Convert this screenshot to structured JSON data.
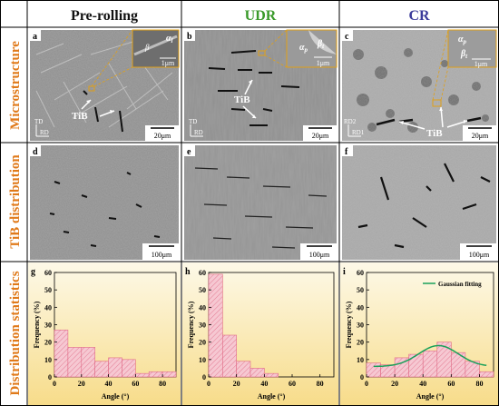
{
  "columns": [
    {
      "label": "Pre-rolling",
      "color": "#111111"
    },
    {
      "label": "UDR",
      "color": "#3a9a2a"
    },
    {
      "label": "CR",
      "color": "#3a3a9a"
    }
  ],
  "rows": [
    {
      "label": "Microstructure",
      "color": "#e07a1a"
    },
    {
      "label": "TiB distribution",
      "color": "#e07a1a"
    },
    {
      "label": "Distribution statistics",
      "color": "#e07a1a"
    }
  ],
  "micrographs": [
    {
      "letter": "a",
      "scale": "20μm",
      "inset_scale": "1μm",
      "inset_labels": [
        "α",
        "β"
      ],
      "inset_subs": [
        "l",
        ""
      ],
      "tib_label": "TiB",
      "axis_top": "TD",
      "axis_right": "RD"
    },
    {
      "letter": "b",
      "scale": "20μm",
      "inset_scale": "1μm",
      "inset_labels": [
        "α",
        "β"
      ],
      "inset_subs": [
        "p",
        "t"
      ],
      "tib_label": "TiB",
      "axis_top": "TD",
      "axis_right": "RD"
    },
    {
      "letter": "c",
      "scale": "20μm",
      "inset_scale": "1μm",
      "inset_labels": [
        "α",
        "β"
      ],
      "inset_subs": [
        "p",
        "t"
      ],
      "tib_label": "TiB",
      "axis_top": "RD2",
      "axis_right": "RD1"
    }
  ],
  "distributions": [
    {
      "letter": "d",
      "scale": "100μm"
    },
    {
      "letter": "e",
      "scale": "100μm"
    },
    {
      "letter": "f",
      "scale": "100μm"
    }
  ],
  "colors": {
    "hist_bar_fill": "#f6c8d2",
    "hist_bar_edge": "#e06a85",
    "gaussian": "#1aa05a",
    "bg_top": "#fdf9e8",
    "bg_bottom": "#f7dc8a",
    "inset_border": "#e0a018"
  },
  "chart_data": [
    {
      "type": "bar",
      "panel": "g",
      "xlabel": "Angle (°)",
      "ylabel": "Frequency (%)",
      "xlim": [
        0,
        90
      ],
      "ylim": [
        0,
        60
      ],
      "xticks": [
        0,
        20,
        40,
        60,
        80
      ],
      "yticks": [
        0,
        10,
        20,
        30,
        40,
        50,
        60
      ],
      "bin_width": 10,
      "x": [
        5,
        15,
        25,
        35,
        45,
        55,
        65,
        75,
        85
      ],
      "values": [
        27,
        17,
        17,
        9,
        11,
        10,
        2,
        3,
        3
      ]
    },
    {
      "type": "bar",
      "panel": "h",
      "xlabel": "Angle (°)",
      "ylabel": "Frequency (%)",
      "xlim": [
        0,
        90
      ],
      "ylim": [
        0,
        60
      ],
      "xticks": [
        0,
        20,
        40,
        60,
        80
      ],
      "yticks": [
        0,
        10,
        20,
        30,
        40,
        50,
        60
      ],
      "bin_width": 10,
      "x": [
        5,
        15,
        25,
        35,
        45,
        55,
        65,
        75,
        85
      ],
      "values": [
        59,
        24,
        9,
        5,
        2,
        0,
        0,
        0,
        0
      ]
    },
    {
      "type": "bar",
      "panel": "i",
      "xlabel": "Angle (°)",
      "ylabel": "Frequency (%)",
      "xlim": [
        0,
        90
      ],
      "ylim": [
        0,
        60
      ],
      "xticks": [
        0,
        20,
        40,
        60,
        80
      ],
      "yticks": [
        0,
        10,
        20,
        30,
        40,
        50,
        60
      ],
      "bin_width": 10,
      "x": [
        5,
        15,
        25,
        35,
        45,
        55,
        65,
        75,
        85
      ],
      "values": [
        8,
        7,
        11,
        13,
        15,
        20,
        14,
        9,
        3
      ],
      "legend": {
        "label": "Gaussian fitting",
        "placement": "top-right"
      },
      "fit": {
        "type": "gaussian",
        "y0": 6,
        "amplitude": 12,
        "center": 51,
        "sigma": 14
      }
    }
  ]
}
